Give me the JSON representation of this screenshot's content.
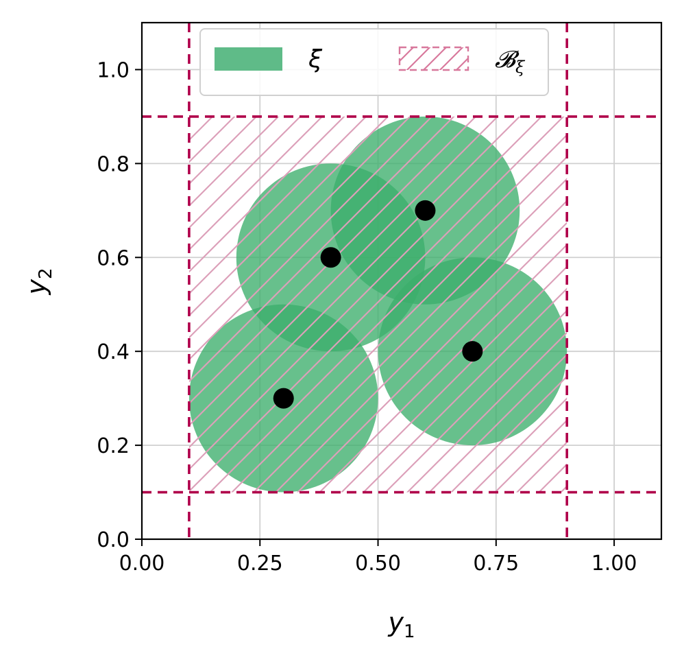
{
  "chart_data": {
    "type": "scatter",
    "title": "",
    "xlabel": "y",
    "xlabel_sub": "1",
    "ylabel": "y",
    "ylabel_sub": "2",
    "xlim": [
      0.0,
      1.1
    ],
    "ylim": [
      0.0,
      1.1
    ],
    "xticks": [
      0.0,
      0.25,
      0.5,
      0.75,
      1.0
    ],
    "xtick_labels": [
      "0.00",
      "0.25",
      "0.50",
      "0.75",
      "1.00"
    ],
    "yticks": [
      0.0,
      0.2,
      0.4,
      0.6,
      0.8,
      1.0
    ],
    "ytick_labels": [
      "0.0",
      "0.2",
      "0.4",
      "0.6",
      "0.8",
      "1.0"
    ],
    "grid": true,
    "legend_placement": "top-center",
    "points": [
      {
        "x": 0.3,
        "y": 0.3
      },
      {
        "x": 0.4,
        "y": 0.6
      },
      {
        "x": 0.6,
        "y": 0.7
      },
      {
        "x": 0.7,
        "y": 0.4
      }
    ],
    "circle_radius": 0.2,
    "box": {
      "x_min": 0.1,
      "x_max": 0.9,
      "y_min": 0.1,
      "y_max": 0.9
    },
    "series": [
      {
        "name": "ξ",
        "kind": "filled-circles",
        "color": "#3cae6c"
      },
      {
        "name": "𝓑",
        "name_sub": "ξ",
        "kind": "hatched-box",
        "color": "#b0004a",
        "hatch_color": "#d8789c"
      }
    ],
    "colors": {
      "circles": "#3cae6c",
      "points": "#000000",
      "box_lines": "#b0004a",
      "hatch": "#d8789c",
      "grid": "#d0d0d0"
    }
  }
}
